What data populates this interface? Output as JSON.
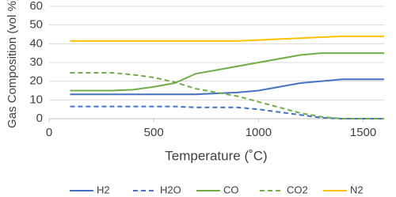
{
  "chart_data": {
    "type": "line",
    "x_label": "Temperature (˚C)",
    "y_label": "Gas Composition (vol %)",
    "x": [
      100,
      200,
      300,
      400,
      500,
      600,
      700,
      800,
      900,
      1000,
      1100,
      1200,
      1300,
      1400,
      1500,
      1600
    ],
    "series": [
      {
        "name": "H2",
        "color": "#4472c4",
        "dashed": false,
        "values": [
          13,
          13,
          13,
          13,
          13,
          13,
          13,
          13.5,
          14,
          15,
          17,
          19,
          20,
          21,
          21,
          21
        ]
      },
      {
        "name": "H2O",
        "color": "#4472c4",
        "dashed": true,
        "values": [
          6.5,
          6.5,
          6.5,
          6.5,
          6.5,
          6.5,
          6,
          6,
          6,
          5,
          3.5,
          2,
          0.5,
          0,
          0,
          0
        ]
      },
      {
        "name": "CO",
        "color": "#70ad47",
        "dashed": false,
        "values": [
          15,
          15,
          15,
          15.5,
          17,
          19,
          24,
          26,
          28,
          30,
          32,
          34,
          35,
          35,
          35,
          35
        ]
      },
      {
        "name": "CO2",
        "color": "#70ad47",
        "dashed": true,
        "values": [
          24.5,
          24.5,
          24.5,
          23.5,
          22,
          19.5,
          16,
          14,
          12,
          9,
          6,
          3,
          1,
          0,
          0,
          0
        ]
      },
      {
        "name": "N2",
        "color": "#ffc000",
        "dashed": false,
        "values": [
          41.5,
          41.5,
          41.5,
          41.5,
          41.5,
          41.5,
          41.5,
          41.5,
          41.5,
          42,
          42.5,
          43,
          43.5,
          44,
          44,
          44
        ]
      }
    ],
    "xlim": [
      0,
      1600
    ],
    "xticks": [
      0,
      500,
      1000,
      1500
    ],
    "ylim": [
      0,
      60
    ],
    "yticks": [
      0,
      10,
      20,
      30,
      40,
      50,
      60
    ],
    "grid": true,
    "legend": "bottom"
  }
}
